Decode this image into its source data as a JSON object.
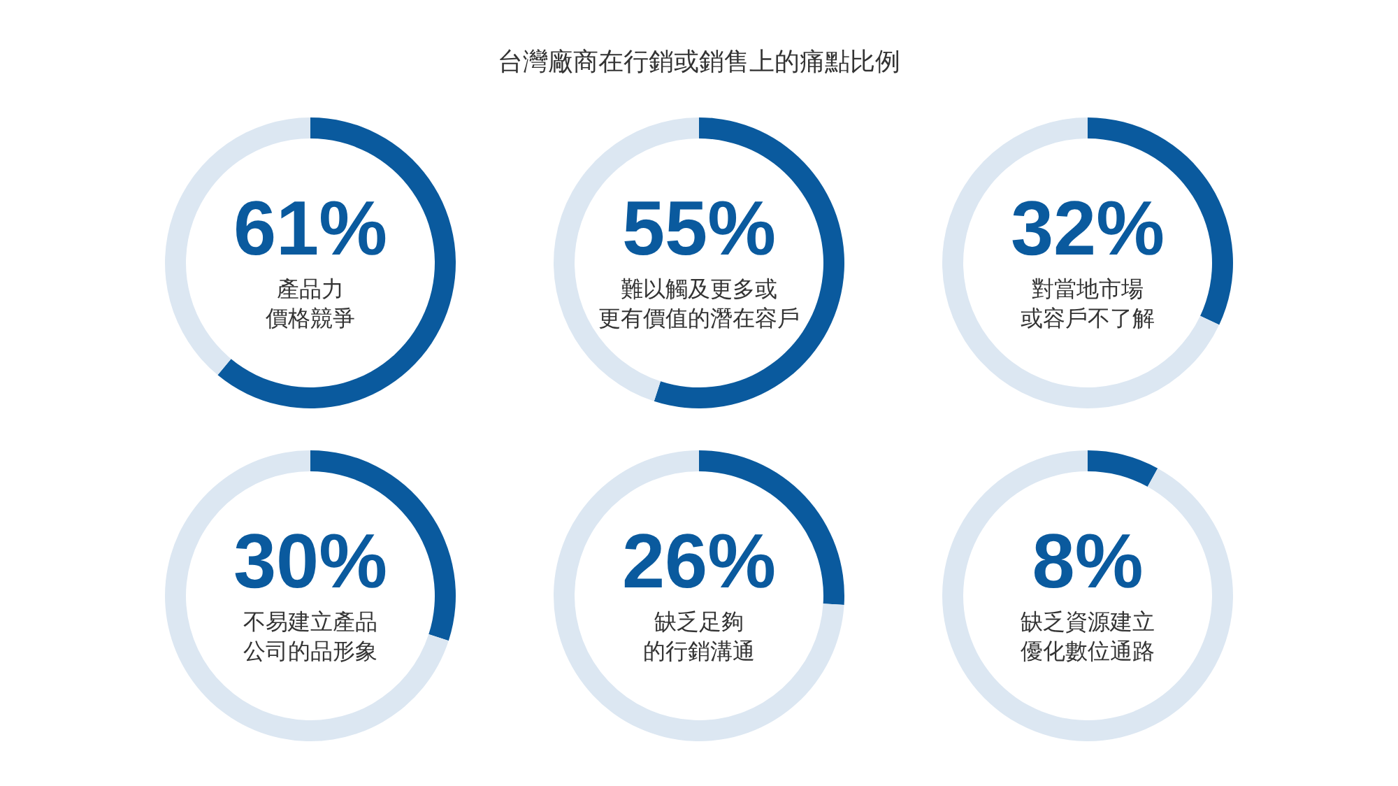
{
  "chart_data": [
    {
      "type": "other",
      "title": "台灣廠商在行銷或銷售上的痛點比例"
    },
    {
      "type": "donut",
      "categories": [
        "產品力價格競爭",
        null
      ],
      "values": [
        61,
        39
      ],
      "colors": [
        "#0a5a9e",
        "#dce7f2"
      ],
      "value_labels": [
        "61%",
        null
      ]
    },
    {
      "type": "donut",
      "categories": [
        "難以觸及更多或更有價值的潛在容戶",
        null
      ],
      "values": [
        55,
        45
      ],
      "colors": [
        "#0a5a9e",
        "#dce7f2"
      ],
      "value_labels": [
        "55%",
        null
      ]
    },
    {
      "type": "donut",
      "categories": [
        "對當地市場或容戶不了解",
        null
      ],
      "values": [
        32,
        68
      ],
      "colors": [
        "#0a5a9e",
        "#dce7f2"
      ],
      "value_labels": [
        "32%",
        null
      ]
    },
    {
      "type": "donut",
      "categories": [
        "不易建立產品公司的品形象",
        null
      ],
      "values": [
        30,
        70
      ],
      "colors": [
        "#0a5a9e",
        "#dce7f2"
      ],
      "value_labels": [
        "30%",
        null
      ]
    },
    {
      "type": "donut",
      "categories": [
        "缺乏足夠的行銷溝通",
        null
      ],
      "values": [
        26,
        74
      ],
      "colors": [
        "#0a5a9e",
        "#dce7f2"
      ],
      "value_labels": [
        "26%",
        null
      ]
    },
    {
      "type": "donut",
      "categories": [
        "缺乏資源建立優化數位通路",
        null
      ],
      "values": [
        8,
        92
      ],
      "colors": [
        "#0a5a9e",
        "#dce7f2"
      ],
      "value_labels": [
        "8%",
        null
      ]
    }
  ]
}
